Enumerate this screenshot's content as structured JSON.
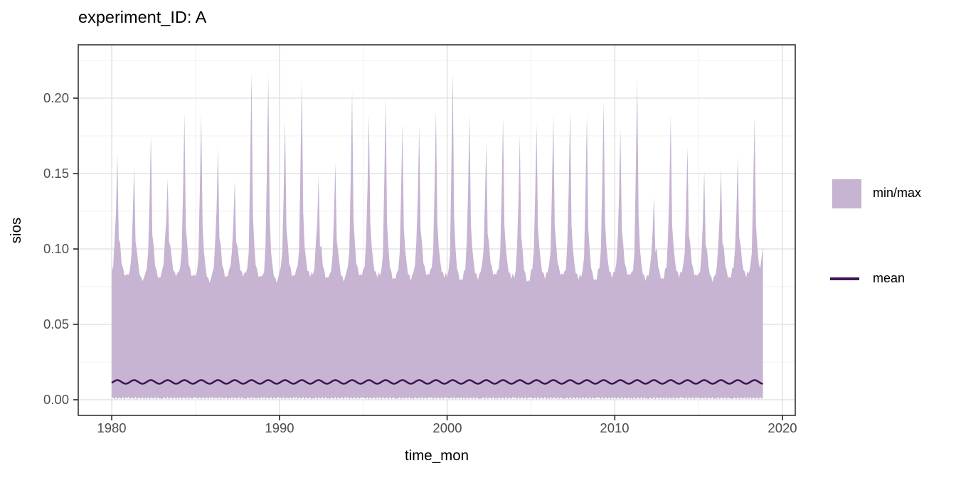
{
  "title": "experiment_ID: A",
  "axes": {
    "x": {
      "label": "time_mon",
      "tick_labels": [
        "1980",
        "1990",
        "2000",
        "2010",
        "2020"
      ],
      "tick_values": [
        1980,
        1990,
        2000,
        2010,
        2020
      ]
    },
    "y": {
      "label": "sios",
      "tick_labels": [
        "0.00",
        "0.05",
        "0.10",
        "0.15",
        "0.20"
      ],
      "tick_values": [
        0,
        0.05,
        0.1,
        0.15,
        0.2
      ]
    }
  },
  "legend": {
    "items": [
      {
        "label": "min/max",
        "kind": "ribbon-swatch"
      },
      {
        "label": "mean",
        "kind": "line-swatch"
      }
    ]
  },
  "colors": {
    "ribbon_fill": "#C6B4D2",
    "mean_line": "#3F1656",
    "panel_border": "#333333",
    "axis_tick": "#333333",
    "grid_major": "#E3E3E3",
    "grid_minor": "#F1F1F1",
    "tick_label": "#4D4D4D",
    "text": "#000000",
    "panel_bg": "#FFFFFF"
  },
  "chart_data": {
    "type": "area",
    "title": "experiment_ID: A",
    "xlabel": "time_mon",
    "ylabel": "sios",
    "xlim": [
      1978.0,
      2020.76
    ],
    "ylim": [
      -0.0104,
      0.2354
    ],
    "x_ticks": [
      1980,
      1990,
      2000,
      2010,
      2020
    ],
    "x_minor_ticks": [
      1985,
      1995,
      2005,
      2015
    ],
    "y_ticks": [
      0,
      0.05,
      0.1,
      0.15,
      0.2
    ],
    "y_minor_ticks": [
      0.025,
      0.075,
      0.125,
      0.175,
      0.225
    ],
    "grid": "major+minor",
    "legend_position": "right",
    "x_start": 1980.0,
    "x_end": 2018.83,
    "end_value_at_cut": 0.102,
    "series": [
      {
        "name": "min/max",
        "kind": "ribbon",
        "years": [
          1980,
          1981,
          1982,
          1983,
          1984,
          1985,
          1986,
          1987,
          1988,
          1989,
          1990,
          1991,
          1992,
          1993,
          1994,
          1995,
          1996,
          1997,
          1998,
          1999,
          2000,
          2001,
          2002,
          2003,
          2004,
          2005,
          2006,
          2007,
          2008,
          2009,
          2010,
          2011,
          2012,
          2013,
          2014,
          2015,
          2016,
          2017,
          2018
        ],
        "annual_peak_max": [
          0.162,
          0.156,
          0.175,
          0.148,
          0.189,
          0.19,
          0.167,
          0.146,
          0.217,
          0.216,
          0.185,
          0.213,
          0.148,
          0.158,
          0.205,
          0.19,
          0.201,
          0.184,
          0.181,
          0.192,
          0.217,
          0.19,
          0.171,
          0.187,
          0.175,
          0.183,
          0.189,
          0.192,
          0.189,
          0.197,
          0.18,
          0.214,
          0.135,
          0.188,
          0.168,
          0.152,
          0.154,
          0.161,
          0.188
        ],
        "typical_valley_max": 0.084,
        "min_band": [
          0.0001,
          0.002
        ]
      },
      {
        "name": "mean",
        "kind": "line",
        "center": 0.0118,
        "annual_amplitude": 0.0012
      }
    ]
  }
}
